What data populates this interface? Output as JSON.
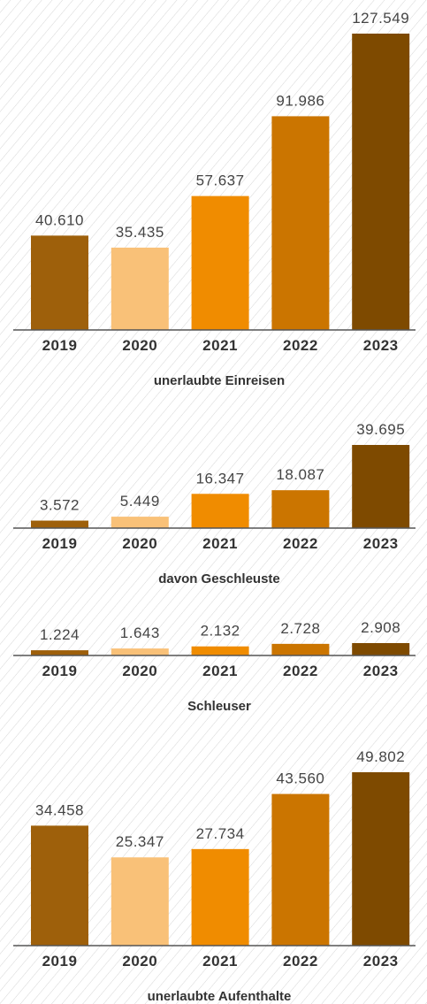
{
  "chart_data": [
    {
      "type": "bar",
      "title": "unerlaubte Einreisen",
      "categories": [
        "2019",
        "2020",
        "2021",
        "2022",
        "2023"
      ],
      "values": [
        40610,
        35435,
        57637,
        91986,
        127549
      ],
      "value_labels": [
        "40.610",
        "35.435",
        "57.637",
        "91.986",
        "127.549"
      ],
      "colors": [
        "#9e600b",
        "#f9c178",
        "#f08c00",
        "#cb7500",
        "#7e4a00"
      ]
    },
    {
      "type": "bar",
      "title": "davon Geschleuste",
      "categories": [
        "2019",
        "2020",
        "2021",
        "2022",
        "2023"
      ],
      "values": [
        3572,
        5449,
        16347,
        18087,
        39695
      ],
      "value_labels": [
        "3.572",
        "5.449",
        "16.347",
        "18.087",
        "39.695"
      ],
      "colors": [
        "#9e600b",
        "#f9c178",
        "#f08c00",
        "#cb7500",
        "#7e4a00"
      ]
    },
    {
      "type": "bar",
      "title": "Schleuser",
      "categories": [
        "2019",
        "2020",
        "2021",
        "2022",
        "2023"
      ],
      "values": [
        1224,
        1643,
        2132,
        2728,
        2908
      ],
      "value_labels": [
        "1.224",
        "1.643",
        "2.132",
        "2.728",
        "2.908"
      ],
      "colors": [
        "#9e600b",
        "#f9c178",
        "#f08c00",
        "#cb7500",
        "#7e4a00"
      ]
    },
    {
      "type": "bar",
      "title": "unerlaubte Aufenthalte",
      "categories": [
        "2019",
        "2020",
        "2021",
        "2022",
        "2023"
      ],
      "values": [
        34458,
        25347,
        27734,
        43560,
        49802
      ],
      "value_labels": [
        "34.458",
        "25.347",
        "27.734",
        "43.560",
        "49.802"
      ],
      "colors": [
        "#9e600b",
        "#f9c178",
        "#f08c00",
        "#cb7500",
        "#7e4a00"
      ]
    }
  ]
}
